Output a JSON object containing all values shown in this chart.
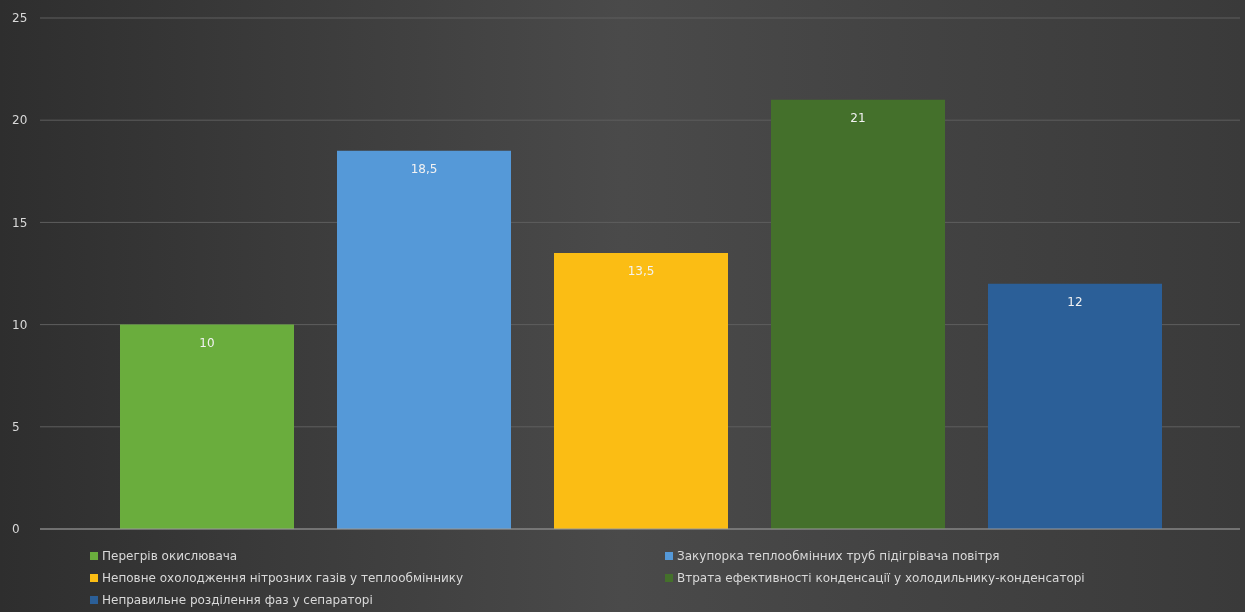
{
  "chart_data": {
    "type": "bar",
    "categories": [
      null
    ],
    "series": [
      {
        "name": "Перегрів окислювача",
        "color": "#6aad3d",
        "values": [
          10
        ],
        "value_labels": [
          "10"
        ]
      },
      {
        "name": "Закупорка теплообмінних труб підігрівача повітря",
        "color": "#5599d8",
        "values": [
          18.5
        ],
        "value_labels": [
          "18,5"
        ]
      },
      {
        "name": "Неповне охолодження нітрозних газів у теплообміннику",
        "color": "#fbbd14",
        "values": [
          13.5
        ],
        "value_labels": [
          "13,5"
        ]
      },
      {
        "name": "Втрата ефективності конденсації у холодильнику-конденсаторі",
        "color": "#44702b",
        "values": [
          21
        ],
        "value_labels": [
          "21"
        ]
      },
      {
        "name": "Неправильне розділення фаз у сепараторі",
        "color": "#2b5f98",
        "values": [
          12
        ],
        "value_labels": [
          "12"
        ]
      }
    ],
    "ylim": [
      0,
      25
    ],
    "yticks": [
      0,
      5,
      10,
      15,
      20,
      25
    ],
    "grid": "y",
    "legend": "bottom"
  }
}
